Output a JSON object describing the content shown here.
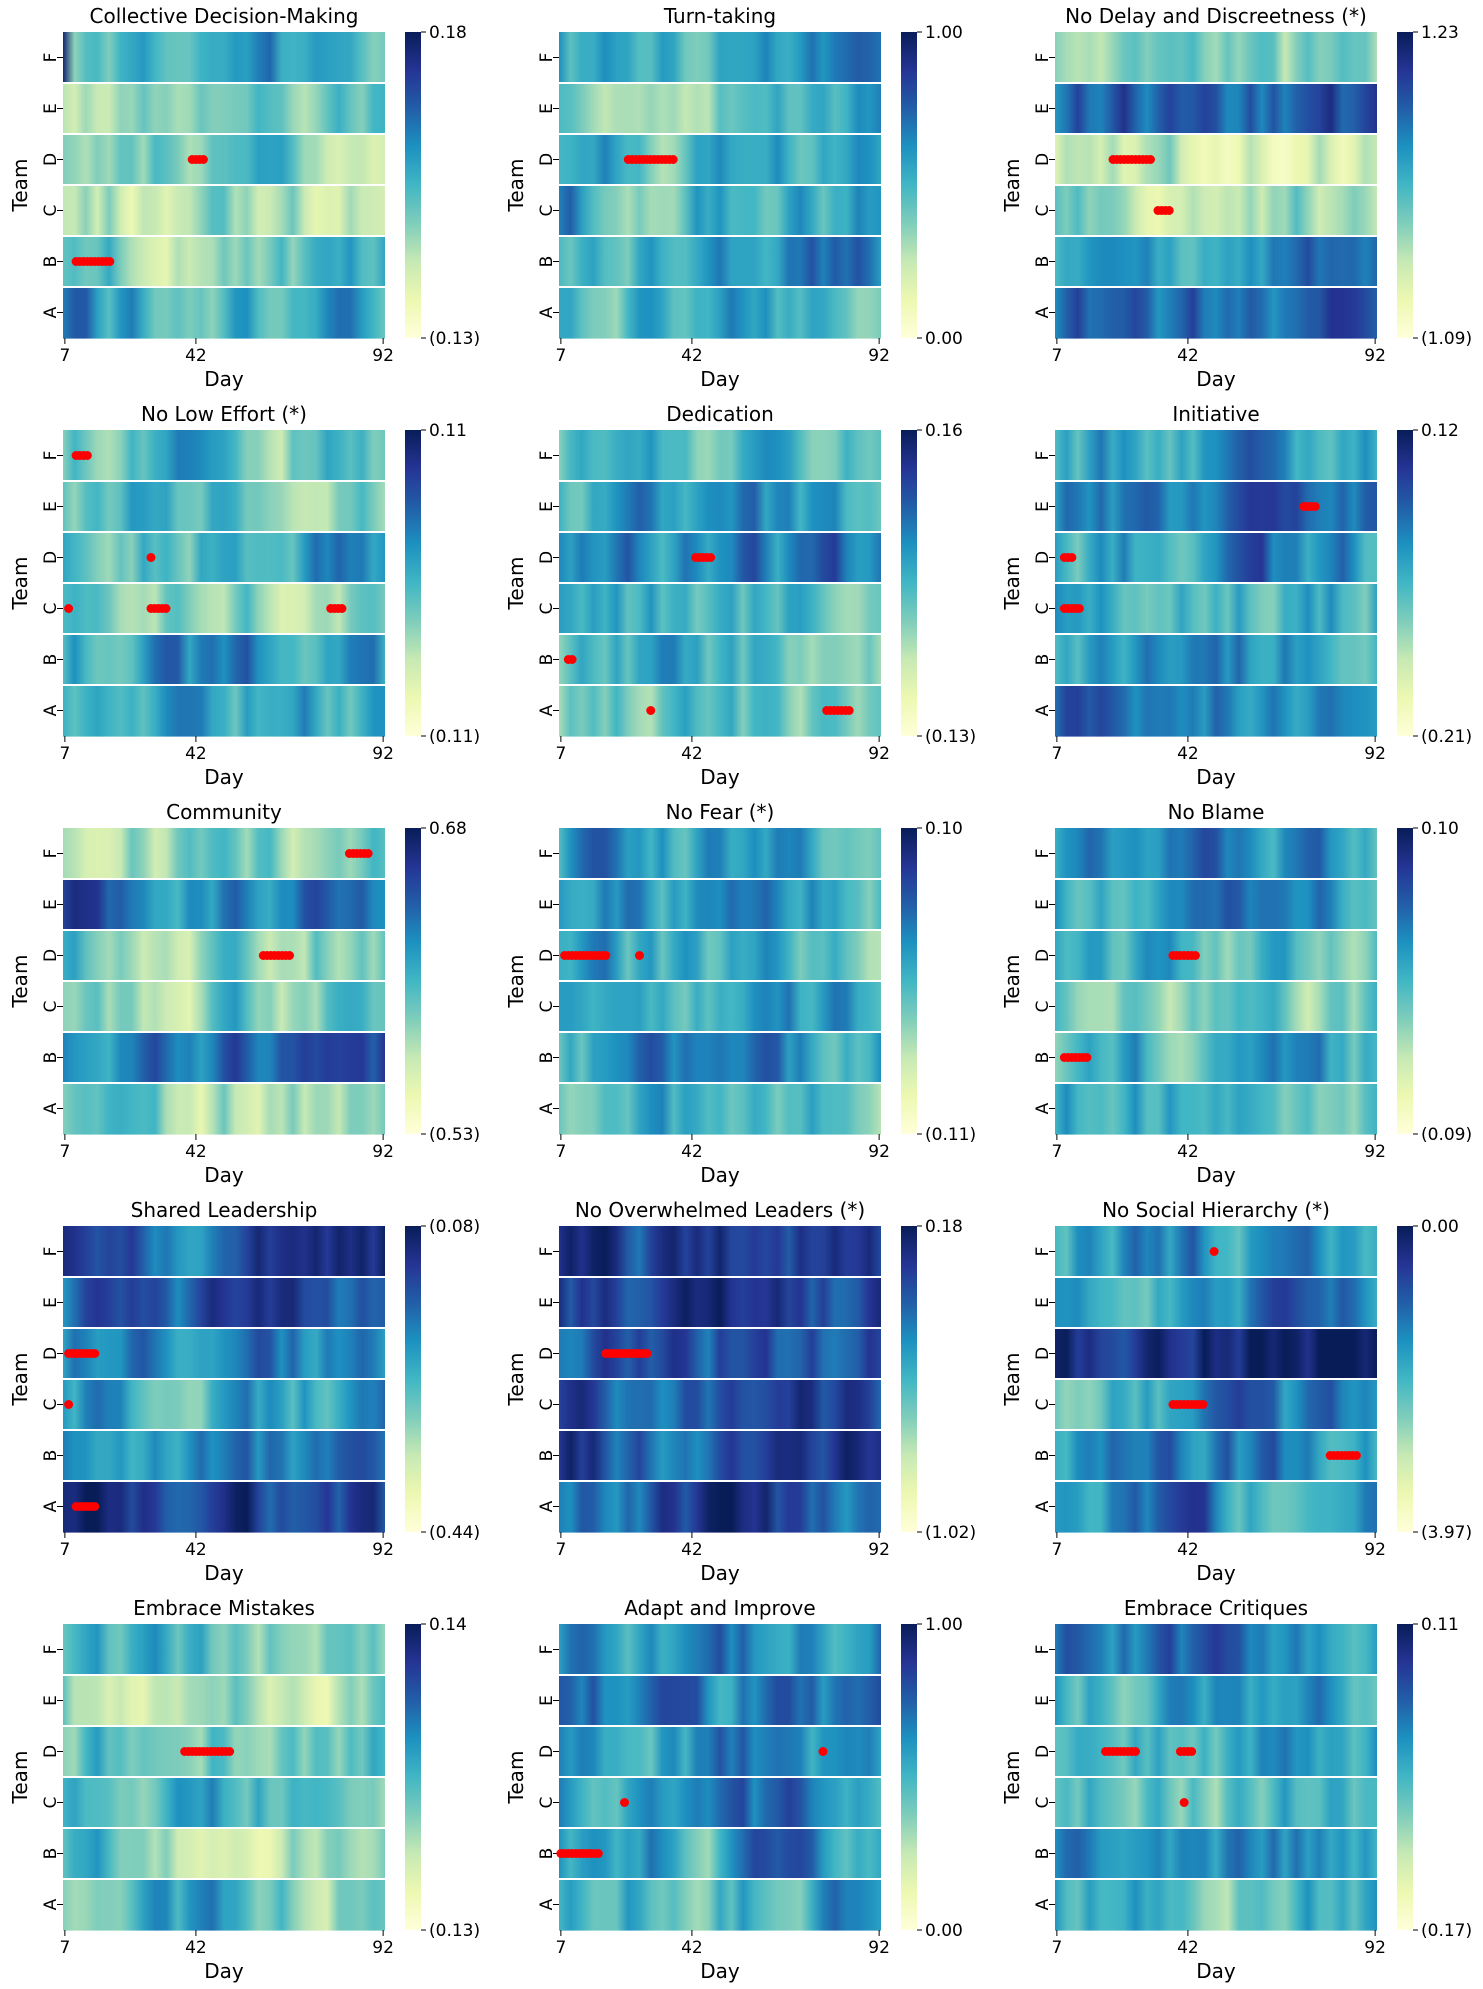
{
  "figure": {
    "colormap": "YlGnBu",
    "highlight_color": "#ff0000",
    "background": "#ffffff"
  },
  "chart_data": [
    {
      "type": "heatmap",
      "title": "Collective Decision-Making",
      "xlabel": "Day",
      "ylabel": "Team",
      "teams": [
        "F",
        "E",
        "D",
        "C",
        "B",
        "A"
      ],
      "x_ticks": [
        "7",
        "42",
        "92"
      ],
      "xlim": [
        7,
        92
      ],
      "colorbar": {
        "max_label": "0.18",
        "min_label": "(0.13)",
        "vmin": -0.13,
        "vmax": 0.18
      },
      "team_levels": {
        "F": 0.45,
        "E": 0.38,
        "D": 0.42,
        "C": 0.3,
        "B": 0.42,
        "A": 0.55
      },
      "team_edges": {
        "F": [
          0.95,
          0.35
        ]
      },
      "markers": [
        {
          "team": "D",
          "from": 41,
          "to": 44
        },
        {
          "team": "B",
          "from": 10,
          "to": 19
        }
      ]
    },
    {
      "type": "heatmap",
      "title": "Turn-taking",
      "xlabel": "Day",
      "ylabel": "Team",
      "teams": [
        "F",
        "E",
        "D",
        "C",
        "B",
        "A"
      ],
      "x_ticks": [
        "7",
        "42",
        "92"
      ],
      "xlim": [
        7,
        92
      ],
      "colorbar": {
        "max_label": "1.00",
        "min_label": "0.00",
        "vmin": 0,
        "vmax": 1
      },
      "team_levels": {
        "F": 0.5,
        "E": 0.52,
        "D": 0.48,
        "C": 0.55,
        "B": 0.58,
        "A": 0.55
      },
      "markers": [
        {
          "team": "D",
          "from": 25,
          "to": 37
        }
      ]
    },
    {
      "type": "heatmap",
      "title": "No Delay and Discreetness (*)",
      "xlabel": "Day",
      "ylabel": "Team",
      "teams": [
        "F",
        "E",
        "D",
        "C",
        "B",
        "A"
      ],
      "x_ticks": [
        "7",
        "42",
        "92"
      ],
      "xlim": [
        7,
        92
      ],
      "colorbar": {
        "max_label": "1.23",
        "min_label": "(1.09)",
        "vmin": -1.09,
        "vmax": 1.23
      },
      "team_levels": {
        "F": 0.25,
        "E": 0.72,
        "D": 0.22,
        "C": 0.35,
        "B": 0.6,
        "A": 0.7
      },
      "markers": [
        {
          "team": "D",
          "from": 22,
          "to": 32
        },
        {
          "team": "C",
          "from": 34,
          "to": 37
        }
      ]
    },
    {
      "type": "heatmap",
      "title": "No Low Effort (*)",
      "xlabel": "Day",
      "ylabel": "Team",
      "teams": [
        "F",
        "E",
        "D",
        "C",
        "B",
        "A"
      ],
      "x_ticks": [
        "7",
        "42",
        "92"
      ],
      "xlim": [
        7,
        92
      ],
      "colorbar": {
        "max_label": "0.11",
        "min_label": "(0.11)",
        "vmin": -0.11,
        "vmax": 0.11
      },
      "team_levels": {
        "F": 0.5,
        "E": 0.52,
        "D": 0.58,
        "C": 0.35,
        "B": 0.55,
        "A": 0.55
      },
      "markers": [
        {
          "team": "F",
          "from": 10,
          "to": 13
        },
        {
          "team": "D",
          "from": 30,
          "to": 30
        },
        {
          "team": "C",
          "from": 8,
          "to": 8
        },
        {
          "team": "C",
          "from": 30,
          "to": 34
        },
        {
          "team": "C",
          "from": 78,
          "to": 81
        }
      ]
    },
    {
      "type": "heatmap",
      "title": "Dedication",
      "xlabel": "Day",
      "ylabel": "Team",
      "teams": [
        "F",
        "E",
        "D",
        "C",
        "B",
        "A"
      ],
      "x_ticks": [
        "7",
        "42",
        "92"
      ],
      "xlim": [
        7,
        92
      ],
      "colorbar": {
        "max_label": "0.16",
        "min_label": "(0.13)",
        "vmin": -0.13,
        "vmax": 0.16
      },
      "team_levels": {
        "F": 0.45,
        "E": 0.55,
        "D": 0.62,
        "C": 0.5,
        "B": 0.48,
        "A": 0.38
      },
      "markers": [
        {
          "team": "D",
          "from": 43,
          "to": 47
        },
        {
          "team": "B",
          "from": 9,
          "to": 10
        },
        {
          "team": "A",
          "from": 31,
          "to": 31
        },
        {
          "team": "A",
          "from": 78,
          "to": 84
        }
      ]
    },
    {
      "type": "heatmap",
      "title": "Initiative",
      "xlabel": "Day",
      "ylabel": "Team",
      "teams": [
        "F",
        "E",
        "D",
        "C",
        "B",
        "A"
      ],
      "x_ticks": [
        "7",
        "42",
        "92"
      ],
      "xlim": [
        7,
        92
      ],
      "colorbar": {
        "max_label": "0.12",
        "min_label": "(0.21)",
        "vmin": -0.21,
        "vmax": 0.12
      },
      "team_levels": {
        "F": 0.55,
        "E": 0.6,
        "D": 0.55,
        "C": 0.55,
        "B": 0.6,
        "A": 0.78
      },
      "markers": [
        {
          "team": "E",
          "from": 73,
          "to": 76
        },
        {
          "team": "D",
          "from": 9,
          "to": 11
        },
        {
          "team": "C",
          "from": 9,
          "to": 13
        }
      ]
    },
    {
      "type": "heatmap",
      "title": "Community",
      "xlabel": "Day",
      "ylabel": "Team",
      "teams": [
        "F",
        "E",
        "D",
        "C",
        "B",
        "A"
      ],
      "x_ticks": [
        "7",
        "42",
        "92"
      ],
      "xlim": [
        7,
        92
      ],
      "colorbar": {
        "max_label": "0.68",
        "min_label": "(0.53)",
        "vmin": -0.53,
        "vmax": 0.68
      },
      "team_levels": {
        "F": 0.35,
        "E": 0.7,
        "D": 0.45,
        "C": 0.38,
        "B": 0.75,
        "A": 0.28
      },
      "markers": [
        {
          "team": "F",
          "from": 83,
          "to": 88
        },
        {
          "team": "D",
          "from": 60,
          "to": 67
        }
      ]
    },
    {
      "type": "heatmap",
      "title": "No Fear (*)",
      "xlabel": "Day",
      "ylabel": "Team",
      "teams": [
        "F",
        "E",
        "D",
        "C",
        "B",
        "A"
      ],
      "x_ticks": [
        "7",
        "42",
        "92"
      ],
      "xlim": [
        7,
        92
      ],
      "colorbar": {
        "max_label": "0.10",
        "min_label": "(0.11)",
        "vmin": -0.11,
        "vmax": 0.1
      },
      "team_levels": {
        "F": 0.55,
        "E": 0.58,
        "D": 0.45,
        "C": 0.5,
        "B": 0.55,
        "A": 0.45
      },
      "markers": [
        {
          "team": "D",
          "from": 8,
          "to": 19
        },
        {
          "team": "D",
          "from": 28,
          "to": 28
        }
      ]
    },
    {
      "type": "heatmap",
      "title": "No Blame",
      "xlabel": "Day",
      "ylabel": "Team",
      "teams": [
        "F",
        "E",
        "D",
        "C",
        "B",
        "A"
      ],
      "x_ticks": [
        "7",
        "42",
        "92"
      ],
      "xlim": [
        7,
        92
      ],
      "colorbar": {
        "max_label": "0.10",
        "min_label": "(0.09)",
        "vmin": -0.09,
        "vmax": 0.1
      },
      "team_levels": {
        "F": 0.58,
        "E": 0.58,
        "D": 0.45,
        "C": 0.38,
        "B": 0.45,
        "A": 0.5
      },
      "markers": [
        {
          "team": "D",
          "from": 38,
          "to": 44
        },
        {
          "team": "B",
          "from": 9,
          "to": 15
        }
      ]
    },
    {
      "type": "heatmap",
      "title": "Shared Leadership",
      "xlabel": "Day",
      "ylabel": "Team",
      "teams": [
        "F",
        "E",
        "D",
        "C",
        "B",
        "A"
      ],
      "x_ticks": [
        "7",
        "42",
        "92"
      ],
      "xlim": [
        7,
        92
      ],
      "colorbar": {
        "max_label": "(0.08)",
        "min_label": "(0.44)",
        "vmin": -0.44,
        "vmax": -0.08
      },
      "team_levels": {
        "F": 0.82,
        "E": 0.72,
        "D": 0.62,
        "C": 0.6,
        "B": 0.62,
        "A": 0.82
      },
      "markers": [
        {
          "team": "D",
          "from": 8,
          "to": 15
        },
        {
          "team": "C",
          "from": 8,
          "to": 8
        },
        {
          "team": "A",
          "from": 10,
          "to": 15
        }
      ]
    },
    {
      "type": "heatmap",
      "title": "No Overwhelmed Leaders (*)",
      "xlabel": "Day",
      "ylabel": "Team",
      "teams": [
        "F",
        "E",
        "D",
        "C",
        "B",
        "A"
      ],
      "x_ticks": [
        "7",
        "42",
        "92"
      ],
      "xlim": [
        7,
        92
      ],
      "colorbar": {
        "max_label": "0.18",
        "min_label": "(1.02)",
        "vmin": -1.02,
        "vmax": 0.18
      },
      "team_levels": {
        "F": 0.85,
        "E": 0.82,
        "D": 0.8,
        "C": 0.8,
        "B": 0.78,
        "A": 0.8
      },
      "markers": [
        {
          "team": "D",
          "from": 19,
          "to": 30
        }
      ]
    },
    {
      "type": "heatmap",
      "title": "No Social Hierarchy (*)",
      "xlabel": "Day",
      "ylabel": "Team",
      "teams": [
        "F",
        "E",
        "D",
        "C",
        "B",
        "A"
      ],
      "x_ticks": [
        "7",
        "42",
        "92"
      ],
      "xlim": [
        7,
        92
      ],
      "colorbar": {
        "max_label": "0.00",
        "min_label": "(3.97)",
        "vmin": -3.97,
        "vmax": 0
      },
      "team_levels": {
        "F": 0.62,
        "E": 0.7,
        "D": 0.98,
        "C": 0.55,
        "B": 0.6,
        "A": 0.62
      },
      "markers": [
        {
          "team": "F",
          "from": 49,
          "to": 49
        },
        {
          "team": "C",
          "from": 38,
          "to": 46
        },
        {
          "team": "B",
          "from": 80,
          "to": 87
        }
      ]
    },
    {
      "type": "heatmap",
      "title": "Embrace Mistakes",
      "xlabel": "Day",
      "ylabel": "Team",
      "teams": [
        "F",
        "E",
        "D",
        "C",
        "B",
        "A"
      ],
      "x_ticks": [
        "7",
        "42",
        "92"
      ],
      "xlim": [
        7,
        92
      ],
      "colorbar": {
        "max_label": "0.14",
        "min_label": "(0.13)",
        "vmin": -0.13,
        "vmax": 0.14
      },
      "team_levels": {
        "F": 0.38,
        "E": 0.35,
        "D": 0.48,
        "C": 0.48,
        "B": 0.35,
        "A": 0.5
      },
      "markers": [
        {
          "team": "D",
          "from": 39,
          "to": 51
        }
      ]
    },
    {
      "type": "heatmap",
      "title": "Adapt and Improve",
      "xlabel": "Day",
      "ylabel": "Team",
      "teams": [
        "F",
        "E",
        "D",
        "C",
        "B",
        "A"
      ],
      "x_ticks": [
        "7",
        "42",
        "92"
      ],
      "xlim": [
        7,
        92
      ],
      "colorbar": {
        "max_label": "1.00",
        "min_label": "0.00",
        "vmin": 0,
        "vmax": 1
      },
      "team_levels": {
        "F": 0.62,
        "E": 0.65,
        "D": 0.6,
        "C": 0.62,
        "B": 0.62,
        "A": 0.6
      },
      "markers": [
        {
          "team": "D",
          "from": 77,
          "to": 77
        },
        {
          "team": "C",
          "from": 24,
          "to": 24
        },
        {
          "team": "B",
          "from": 7,
          "to": 17
        }
      ]
    },
    {
      "type": "heatmap",
      "title": "Embrace Critiques",
      "xlabel": "Day",
      "ylabel": "Team",
      "teams": [
        "F",
        "E",
        "D",
        "C",
        "B",
        "A"
      ],
      "x_ticks": [
        "7",
        "42",
        "92"
      ],
      "xlim": [
        7,
        92
      ],
      "colorbar": {
        "max_label": "0.11",
        "min_label": "(0.17)",
        "vmin": -0.17,
        "vmax": 0.11
      },
      "team_levels": {
        "F": 0.62,
        "E": 0.5,
        "D": 0.55,
        "C": 0.48,
        "B": 0.62,
        "A": 0.55
      },
      "markers": [
        {
          "team": "D",
          "from": 20,
          "to": 28
        },
        {
          "team": "D",
          "from": 40,
          "to": 43
        },
        {
          "team": "C",
          "from": 41,
          "to": 41
        }
      ]
    }
  ]
}
